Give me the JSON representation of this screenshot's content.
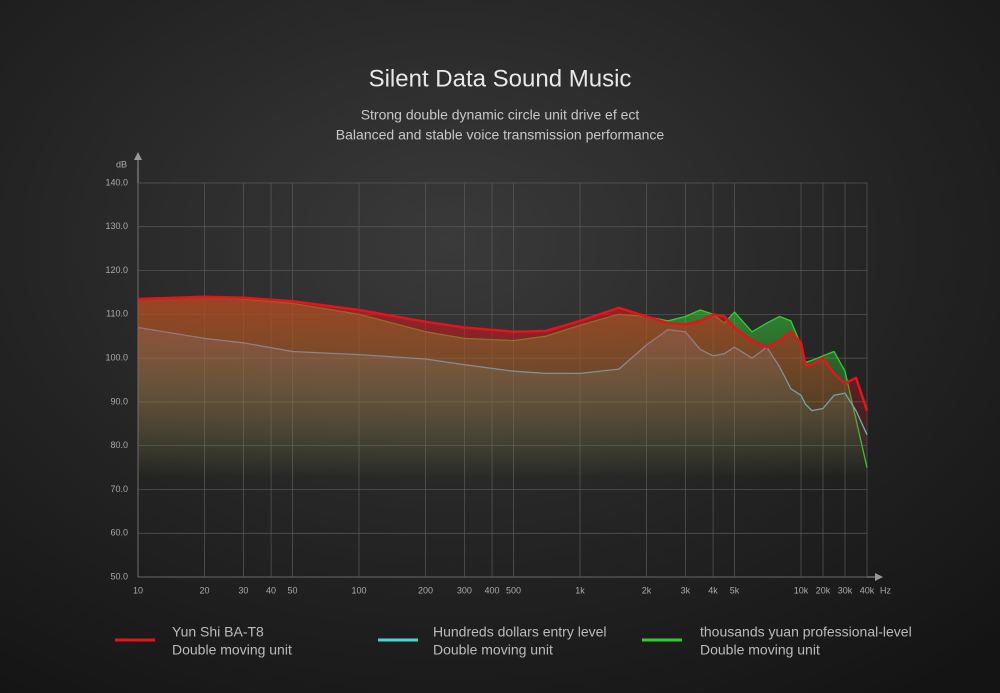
{
  "chart_data": {
    "type": "line",
    "title": "Silent Data  Sound Music",
    "subtitle": [
      "Strong double dynamic circle unit drive ef ect",
      "Balanced and stable voice transmission performance"
    ],
    "y_unit": "dB",
    "x_unit": "Hz",
    "x": [
      10,
      20,
      30,
      50,
      100,
      200,
      300,
      500,
      700,
      1000,
      1500,
      2000,
      2500,
      3000,
      3500,
      4000,
      4500,
      5000,
      6000,
      7000,
      8000,
      9000,
      10000,
      12000,
      15000,
      20000,
      25000,
      30000,
      35000,
      40000
    ],
    "xlim": [
      10,
      40000
    ],
    "xticks": [
      10,
      20,
      30,
      40,
      50,
      100,
      200,
      300,
      400,
      500,
      {
        "value": 1000,
        "label": "1k"
      },
      {
        "value": 2000,
        "label": "2k"
      },
      {
        "value": 3000,
        "label": "3k"
      },
      {
        "value": 4000,
        "label": "4k"
      },
      {
        "value": 5000,
        "label": "5k"
      },
      {
        "value": 10000,
        "label": "10k"
      },
      {
        "value": 20000,
        "label": "20k"
      },
      {
        "value": 30000,
        "label": "30k"
      },
      {
        "value": 40000,
        "label": "40k"
      }
    ],
    "ylim": [
      50,
      140
    ],
    "yticks": [
      {
        "value": 50,
        "label": "50.0"
      },
      {
        "value": 60,
        "label": "60.0"
      },
      {
        "value": 70,
        "label": "70.0"
      },
      {
        "value": 80,
        "label": "80.0"
      },
      {
        "value": 90,
        "label": "90.0"
      },
      {
        "value": 100,
        "label": "100.0"
      },
      {
        "value": 110,
        "label": "110.0"
      },
      {
        "value": 120,
        "label": "120.0"
      },
      {
        "value": 130,
        "label": "130.0"
      },
      {
        "value": 140,
        "label": "140.0"
      }
    ],
    "grid": true,
    "series": [
      {
        "name": "thousands yuan professional-level",
        "unit_type": "Double moving unit",
        "color": "#35c935",
        "values": [
          113.5,
          114,
          113.5,
          112.5,
          110,
          106,
          104.5,
          104,
          105,
          107.5,
          110,
          109.5,
          108.5,
          109.5,
          111,
          110,
          108,
          110.5,
          106,
          108,
          109.5,
          108.5,
          103,
          99,
          99.5,
          100.5,
          101.5,
          97,
          86,
          75
        ]
      },
      {
        "name": "Hundreds dollars entry level",
        "unit_type": "Double moving unit",
        "color": "#4fd3d3",
        "values": [
          107,
          104.5,
          103.5,
          101.5,
          100.8,
          99.8,
          98.5,
          97,
          96.5,
          96.5,
          97.5,
          103,
          106.5,
          106,
          102,
          100.5,
          101,
          102.5,
          100,
          102.5,
          98,
          93,
          91.5,
          89.5,
          88,
          88.5,
          91.5,
          92,
          88,
          82.5
        ]
      },
      {
        "name": "Yun Shi BA-T8",
        "unit_type": "Double moving unit",
        "color": "#e3141b",
        "values": [
          113.5,
          114,
          113.8,
          113,
          111,
          108.3,
          107,
          106,
          106.2,
          108.5,
          111.5,
          109.5,
          108,
          107.7,
          108.5,
          110,
          109.5,
          107,
          104,
          102.5,
          104,
          106,
          103.5,
          98.5,
          98.5,
          100,
          96.5,
          94.2,
          95.5,
          88
        ]
      }
    ]
  }
}
